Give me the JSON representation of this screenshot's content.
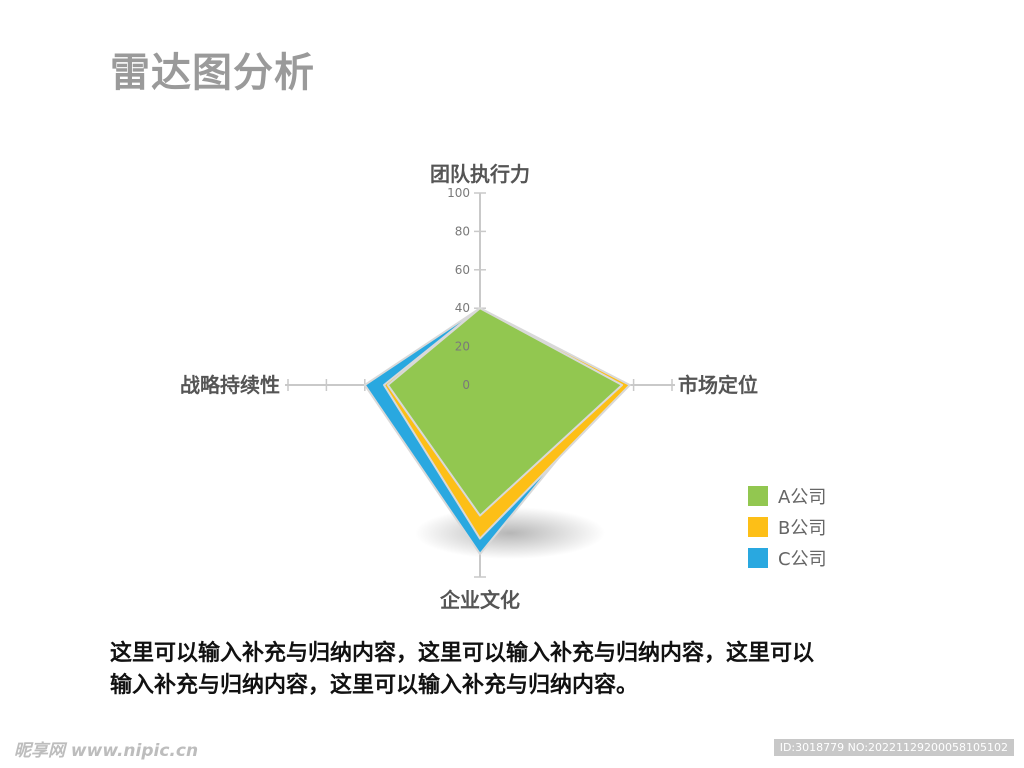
{
  "title": "雷达图分析",
  "chart_data": {
    "type": "radar",
    "axes": [
      "团队执行力",
      "市场定位",
      "企业文化",
      "战略持续性"
    ],
    "ticks": [
      "100",
      "80",
      "60",
      "40",
      "20",
      "0"
    ],
    "rmax": 100,
    "series": [
      {
        "name": "C公司",
        "color": "#29a8e0",
        "values": [
          40,
          72,
          88,
          60
        ]
      },
      {
        "name": "B公司",
        "color": "#fdbf17",
        "values": [
          40,
          78,
          80,
          50
        ]
      },
      {
        "name": "A公司",
        "color": "#92c750",
        "values": [
          40,
          74,
          68,
          48
        ]
      }
    ],
    "legend": [
      {
        "name": "A公司",
        "color": "#92c750"
      },
      {
        "name": "B公司",
        "color": "#fdbf17"
      },
      {
        "name": "C公司",
        "color": "#29a8e0"
      }
    ]
  },
  "caption": {
    "line1": "这里可以输入补充与归纳内容，这里可以输入补充与归纳内容，这里可以",
    "line2": "输入补充与归纳内容，这里可以输入补充与归纳内容。"
  },
  "watermark": {
    "left": "昵享网 www.nipic.cn",
    "right": "ID:3018779 NO:20221129200058105102"
  }
}
